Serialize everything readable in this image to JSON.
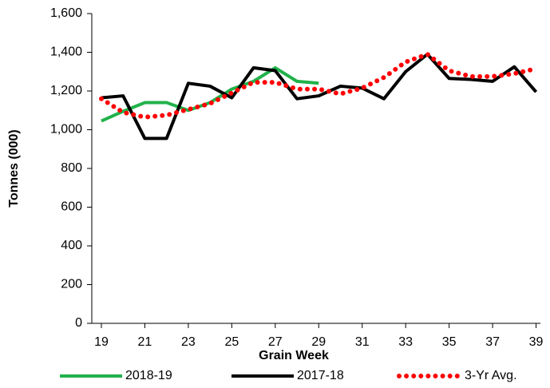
{
  "chart_data": {
    "type": "line",
    "x_label": "Grain Week",
    "y_label": "Tonnes (000)",
    "x": [
      19,
      20,
      21,
      22,
      23,
      24,
      25,
      26,
      27,
      28,
      29,
      30,
      31,
      32,
      33,
      34,
      35,
      36,
      37,
      38,
      39
    ],
    "series": [
      {
        "name": "2018-19",
        "color": "#21b24b",
        "style": "solid",
        "values": [
          1045,
          1095,
          1140,
          1140,
          1100,
          1140,
          1210,
          1250,
          1320,
          1250,
          1240,
          null,
          null,
          null,
          null,
          null,
          null,
          null,
          null,
          null,
          null
        ]
      },
      {
        "name": "2017-18",
        "color": "#000000",
        "style": "solid",
        "values": [
          1165,
          1175,
          955,
          955,
          1240,
          1225,
          1165,
          1320,
          1305,
          1160,
          1175,
          1225,
          1215,
          1160,
          1300,
          1390,
          1265,
          1260,
          1250,
          1325,
          1195
        ]
      },
      {
        "name": "3-Yr Avg.",
        "color": "#ff0000",
        "style": "dotted",
        "values": [
          1160,
          1090,
          1065,
          1075,
          1105,
          1135,
          1190,
          1245,
          1245,
          1210,
          1210,
          1185,
          1215,
          1270,
          1350,
          1390,
          1305,
          1275,
          1275,
          1290,
          1315
        ]
      }
    ],
    "xlim": [
      18.56,
      39.2
    ],
    "xticks": [
      19,
      21,
      23,
      25,
      27,
      29,
      31,
      33,
      35,
      37,
      39
    ],
    "ylim": [
      0,
      1600
    ],
    "yticks": [
      0,
      200,
      400,
      600,
      800,
      {
        "value": 1000,
        "label": "1,000"
      },
      {
        "value": 1200,
        "label": "1,200"
      },
      {
        "value": 1400,
        "label": "1,400"
      },
      {
        "value": 1600,
        "label": "1,600"
      }
    ],
    "legend": "bottom"
  }
}
